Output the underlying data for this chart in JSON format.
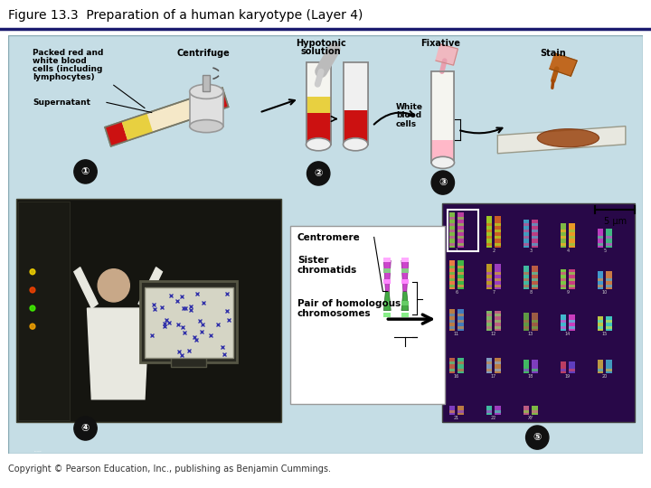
{
  "title": "Figure 13.3  Preparation of a human karyotype (Layer 4)",
  "title_fontsize": 10,
  "title_color": "#000000",
  "background_color": "#ffffff",
  "figure_bg": "#c5dde5",
  "copyright_text": "Copyright © Pearson Education, Inc., publishing as Benjamin Cummings.",
  "copyright_fontsize": 7,
  "figsize": [
    7.2,
    5.4
  ],
  "dpi": 100,
  "scale_bar_text": "5 μm"
}
